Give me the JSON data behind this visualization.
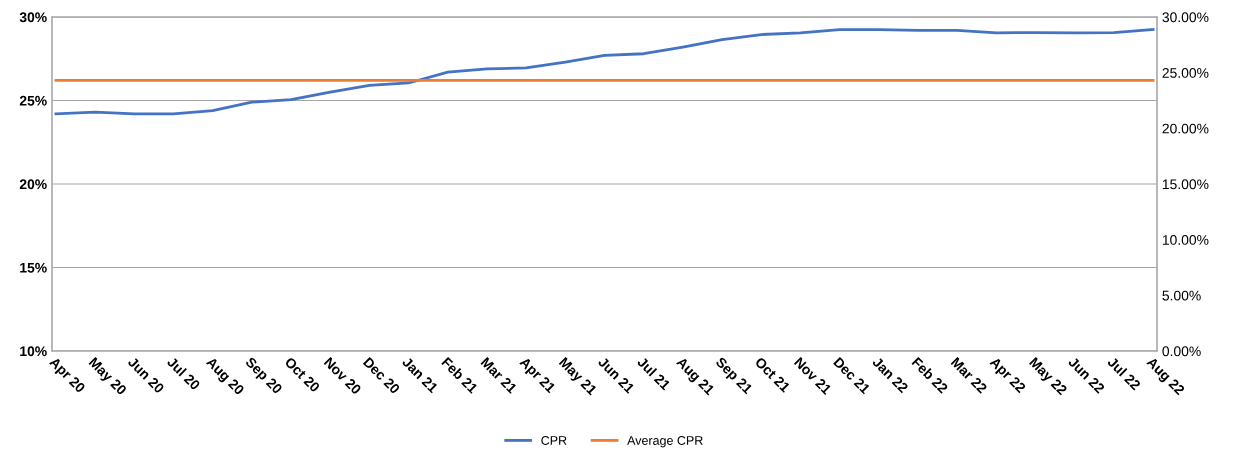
{
  "chart_data": {
    "type": "line",
    "categories": [
      "Apr 20",
      "May 20",
      "Jun 20",
      "Jul 20",
      "Aug 20",
      "Sep 20",
      "Oct 20",
      "Nov 20",
      "Dec 20",
      "Jan 21",
      "Feb 21",
      "Mar 21",
      "Apr 21",
      "May 21",
      "Jun 21",
      "Jul 21",
      "Aug 21",
      "Sep 21",
      "Oct 21",
      "Nov 21",
      "Dec 21",
      "Jan 22",
      "Feb 22",
      "Mar 22",
      "Apr 22",
      "May 22",
      "Jun 22",
      "Jul 22",
      "Aug 22"
    ],
    "series": [
      {
        "name": "CPR",
        "color": "#4472c4",
        "values": [
          24.2,
          24.3,
          24.2,
          24.2,
          24.4,
          24.9,
          25.05,
          25.5,
          25.9,
          26.05,
          26.7,
          26.9,
          26.95,
          27.3,
          27.7,
          27.8,
          28.2,
          28.65,
          28.95,
          29.05,
          29.25,
          29.25,
          29.2,
          29.2,
          29.05,
          29.07,
          29.05,
          29.07,
          29.25
        ]
      },
      {
        "name": "Average CPR",
        "color": "#ed7d31",
        "values": [
          26.2,
          26.2,
          26.2,
          26.2,
          26.2,
          26.2,
          26.2,
          26.2,
          26.2,
          26.2,
          26.2,
          26.2,
          26.2,
          26.2,
          26.2,
          26.2,
          26.2,
          26.2,
          26.2,
          26.2,
          26.2,
          26.2,
          26.2,
          26.2,
          26.2,
          26.2,
          26.2,
          26.2,
          26.2
        ]
      }
    ],
    "ylim": [
      10,
      30
    ],
    "yticks": [
      {
        "value": 10,
        "label": "10%"
      },
      {
        "value": 15,
        "label": "15%"
      },
      {
        "value": 20,
        "label": "20%"
      },
      {
        "value": 25,
        "label": "25%"
      },
      {
        "value": 30,
        "label": "30%"
      }
    ],
    "y2lim": [
      0,
      30
    ],
    "y2ticks": [
      {
        "value": 0,
        "label": "0.00%"
      },
      {
        "value": 5,
        "label": "5.00%"
      },
      {
        "value": 10,
        "label": "10.00%"
      },
      {
        "value": 15,
        "label": "15.00%"
      },
      {
        "value": 20,
        "label": "20.00%"
      },
      {
        "value": 25,
        "label": "25.00%"
      },
      {
        "value": 30,
        "label": "30.00%"
      }
    ],
    "grid": "y",
    "legend": "bottom",
    "marker": "none",
    "line_style": "solid"
  }
}
